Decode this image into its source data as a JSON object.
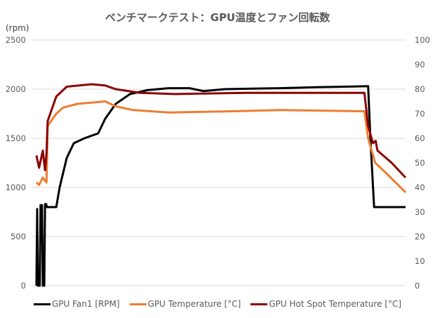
{
  "chart_data": {
    "type": "line",
    "title": "ベンチマークテスト：GPU温度とファン回転数",
    "ylabel": "(rpm)",
    "y_left": {
      "range": [
        0,
        2500
      ],
      "ticks": [
        "0",
        "500",
        "1000",
        "1500",
        "2000",
        "2500"
      ]
    },
    "y_right": {
      "range": [
        0,
        100
      ],
      "ticks": [
        "0",
        "10",
        "20",
        "30",
        "40",
        "50",
        "60",
        "70",
        "80",
        "90",
        "100"
      ]
    },
    "x_range": [
      0,
      100
    ],
    "grid": true,
    "legend_position": "bottom",
    "series": [
      {
        "name": "GPU Fan1 [RPM]",
        "axis": "left",
        "color": "#000000",
        "x": [
          1.3,
          1.5,
          1.7,
          2.2,
          2.4,
          2.8,
          3.0,
          3.4,
          3.6,
          3.9,
          4.1,
          6.6,
          7.5,
          9.4,
          11.3,
          14.1,
          17.8,
          19.7,
          22.5,
          26.3,
          31,
          36.6,
          42.2,
          46,
          51.6,
          66.6,
          76,
          90,
          90.6,
          91.6,
          100
        ],
        "y": [
          0,
          780,
          0,
          0,
          820,
          820,
          0,
          0,
          830,
          830,
          800,
          800,
          1000,
          1300,
          1450,
          1500,
          1550,
          1700,
          1850,
          1950,
          1990,
          2010,
          2010,
          1980,
          2000,
          2010,
          2020,
          2030,
          1500,
          800,
          800
        ]
      },
      {
        "name": "GPU Temperature [°C]",
        "axis": "right",
        "color": "#ED7D31",
        "x": [
          1.3,
          2,
          3,
          4,
          4.3,
          6.6,
          8.4,
          12.2,
          19.7,
          22.5,
          27.2,
          36.6,
          53.5,
          66.6,
          89,
          90,
          91.9,
          94.7,
          100
        ],
        "y": [
          42,
          41,
          44,
          42,
          65,
          70,
          72.5,
          74,
          75,
          73,
          71.5,
          70.5,
          71,
          71.5,
          71,
          60,
          50,
          46,
          38
        ]
      },
      {
        "name": "GPU Hot Spot Temperature [°C]",
        "axis": "right",
        "color": "#8B0000",
        "x": [
          1.3,
          2,
          3,
          3.6,
          4,
          4.3,
          6.6,
          9.4,
          16,
          19.7,
          22.5,
          29,
          38.5,
          57.3,
          89,
          90,
          91.3,
          92,
          92.5,
          96.3,
          100
        ],
        "y": [
          53,
          48,
          55,
          47,
          54,
          67,
          77,
          81,
          82,
          81.5,
          80,
          78.5,
          78,
          78.5,
          78.5,
          65,
          58,
          59,
          55,
          50,
          44
        ]
      }
    ]
  }
}
